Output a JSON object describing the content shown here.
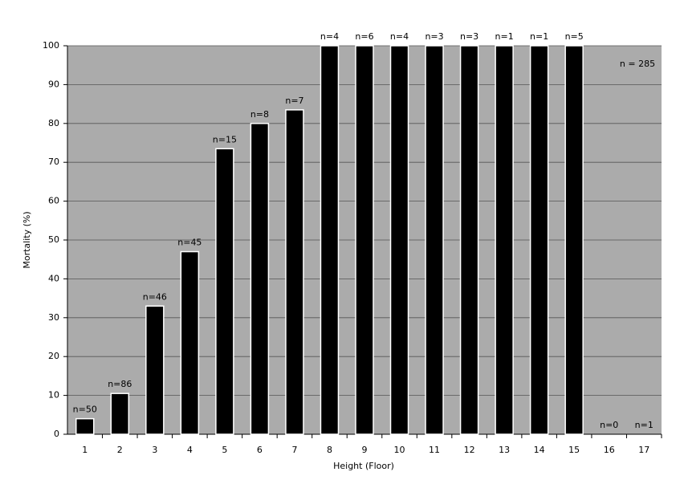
{
  "chart_data": {
    "type": "bar",
    "x_label": "Height (Floor)",
    "y_label": "Mortality (%)",
    "annotation": "n = 285",
    "categories": [
      "1",
      "2",
      "3",
      "4",
      "5",
      "6",
      "7",
      "8",
      "9",
      "10",
      "11",
      "12",
      "13",
      "14",
      "15",
      "16",
      "17"
    ],
    "values": [
      4,
      10.5,
      33,
      47,
      73.5,
      80,
      83.5,
      100,
      100,
      100,
      100,
      100,
      100,
      100,
      100,
      0,
      0
    ],
    "bar_labels": [
      "n=50",
      "n=86",
      "n=46",
      "n=45",
      "n=15",
      "n=8",
      "n=7",
      "n=4",
      "n=6",
      "n=4",
      "n=3",
      "n=3",
      "n=1",
      "n=1",
      "n=5",
      "n=0",
      "n=1"
    ],
    "color": "#000000",
    "ylim": [
      0,
      100
    ],
    "yticks": [
      0,
      10,
      20,
      30,
      40,
      50,
      60,
      70,
      80,
      90,
      100
    ],
    "grid": true
  }
}
